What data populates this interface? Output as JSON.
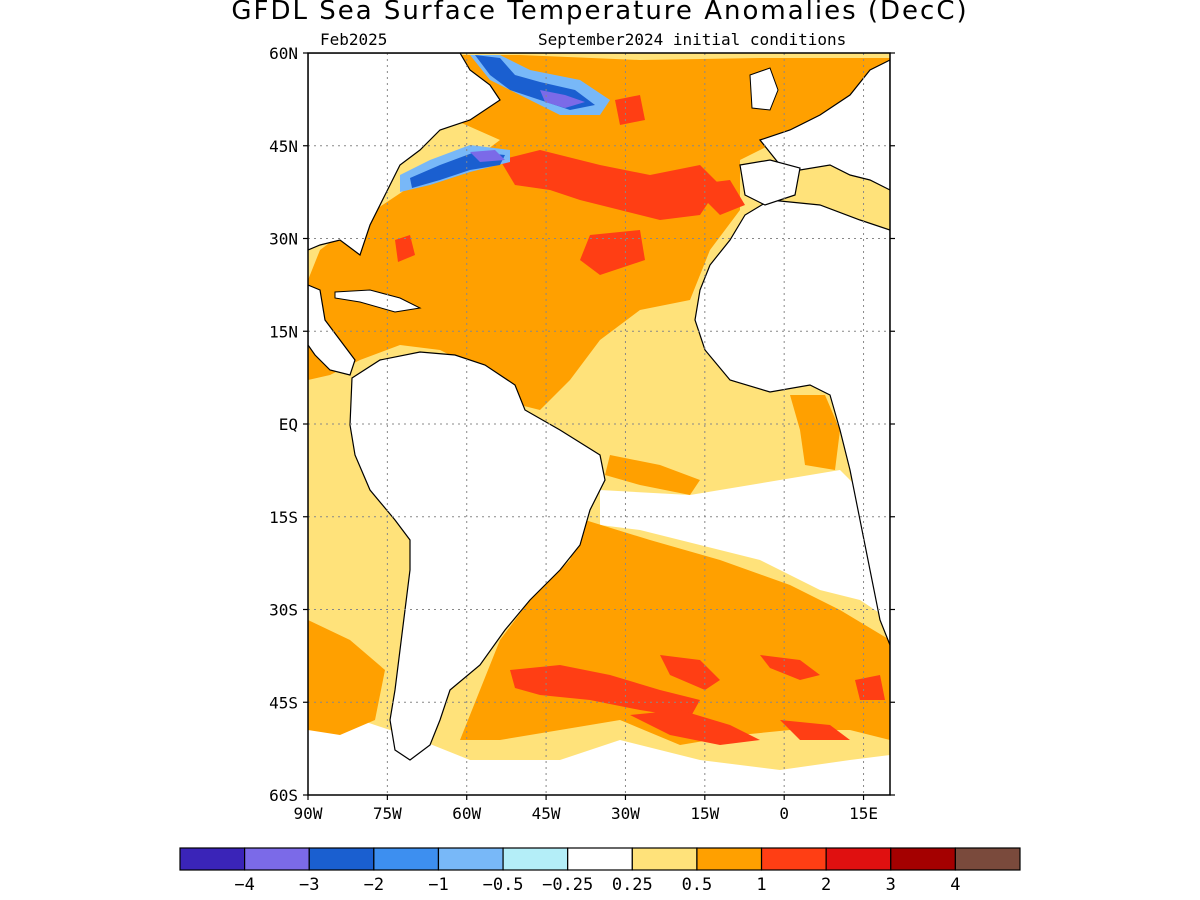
{
  "title": "GFDL Sea Surface Temperature Anomalies (DecC)",
  "valid_label": "Feb2025",
  "init_label": "September2024 initial conditions",
  "map": {
    "lon_range": [
      -90,
      20
    ],
    "lat_range": [
      -60,
      60
    ],
    "lat_ticks": [
      {
        "value": 60,
        "label": "60N"
      },
      {
        "value": 45,
        "label": "45N"
      },
      {
        "value": 30,
        "label": "30N"
      },
      {
        "value": 15,
        "label": "15N"
      },
      {
        "value": 0,
        "label": "EQ"
      },
      {
        "value": -15,
        "label": "15S"
      },
      {
        "value": -30,
        "label": "30S"
      },
      {
        "value": -45,
        "label": "45S"
      },
      {
        "value": -60,
        "label": "60S"
      }
    ],
    "lon_ticks": [
      {
        "value": -90,
        "label": "90W"
      },
      {
        "value": -75,
        "label": "75W"
      },
      {
        "value": -60,
        "label": "60W"
      },
      {
        "value": -45,
        "label": "45W"
      },
      {
        "value": -30,
        "label": "30W"
      },
      {
        "value": -15,
        "label": "15W"
      },
      {
        "value": 0,
        "label": "0"
      },
      {
        "value": 15,
        "label": "15E"
      }
    ]
  },
  "colorbar": {
    "colors": [
      "#3a24b8",
      "#7b6ae8",
      "#1a5fd0",
      "#3d8ff0",
      "#78b8f8",
      "#b4eef8",
      "#ffffff",
      "#ffe27a",
      "#ffa000",
      "#ff3e14",
      "#e01010",
      "#a40000",
      "#7a4a3c"
    ],
    "labels": [
      "−4",
      "−3",
      "−2",
      "−1",
      "−0.5",
      "−0.25",
      "0.25",
      "0.5",
      "1",
      "2",
      "3",
      "4"
    ]
  }
}
